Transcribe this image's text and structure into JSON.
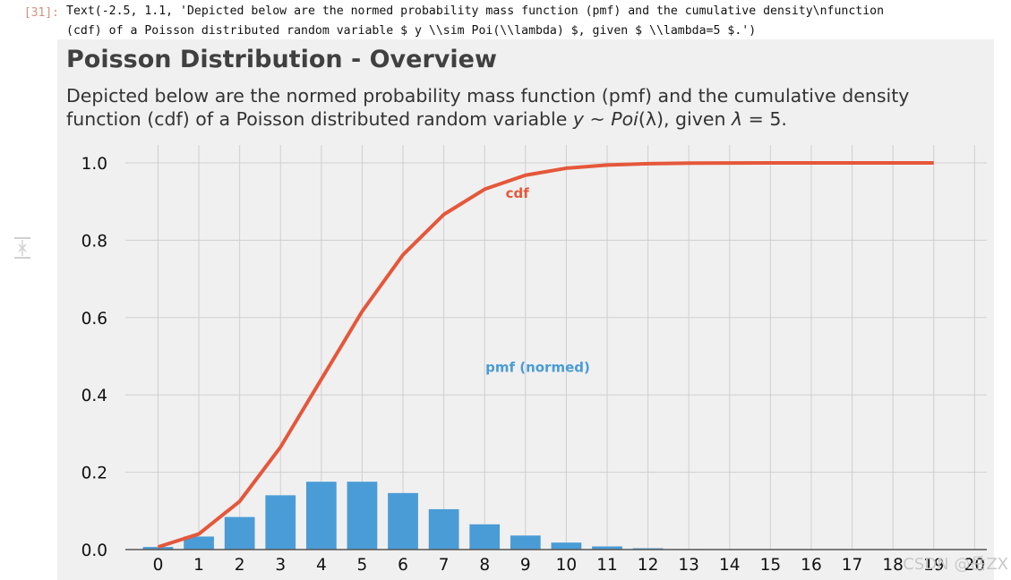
{
  "cell": {
    "prompt": "[31]:",
    "output_line1": "Text(-2.5, 1.1, 'Depicted below are the normed probability mass function (pmf) and the cumulative density\\nfunction",
    "output_line2": "(cdf) of a Poisson distributed random variable $ y \\\\sim Poi(\\\\lambda) $, given $ \\\\lambda=5 $.')"
  },
  "watermark": "CSDN @岳ZX",
  "colors": {
    "cdf": "#e5573a",
    "pmf": "#4a9cd6",
    "figure_background": "#f0f0f0",
    "grid": "#cfcfcf"
  },
  "icons": {
    "collapse": "collapse-output-icon"
  },
  "chart_data": {
    "type": "bar",
    "title": "Poisson Distribution - Overview",
    "subtitle_line1": "Depicted below are the normed probability mass function (pmf) and the cumulative density",
    "subtitle_line2_prefix": "function (cdf) of a Poisson distributed random variable ",
    "subtitle_math_y": "y",
    "subtitle_math_sim": " ~ ",
    "subtitle_math_poi": "Poi",
    "subtitle_math_lambda_paren": "(λ)",
    "subtitle_mid": ", given ",
    "subtitle_math_lambda": "λ",
    "subtitle_math_eq": " = 5.",
    "xlim": [
      -0.8,
      20.3
    ],
    "ylim": [
      0,
      1.0
    ],
    "grid": true,
    "x_ticks": [
      0,
      1,
      2,
      3,
      4,
      5,
      6,
      7,
      8,
      9,
      10,
      11,
      12,
      13,
      14,
      15,
      16,
      17,
      18,
      19,
      20
    ],
    "y_ticks": [
      "0.0",
      "0.2",
      "0.4",
      "0.6",
      "0.8",
      "1.0"
    ],
    "series": [
      {
        "name": "pmf (normed)",
        "type": "bar",
        "x": [
          0,
          1,
          2,
          3,
          4,
          5,
          6,
          7,
          8,
          9,
          10,
          11,
          12,
          13,
          14,
          15,
          16,
          17,
          18,
          19
        ],
        "values": [
          0.0067,
          0.0337,
          0.0842,
          0.1404,
          0.1755,
          0.1755,
          0.1462,
          0.1044,
          0.0653,
          0.0363,
          0.0181,
          0.0082,
          0.0034,
          0.0013,
          0.0005,
          0.0002,
          0.0,
          0.0,
          0.0,
          0.0
        ]
      },
      {
        "name": "cdf",
        "type": "line",
        "x": [
          0,
          1,
          2,
          3,
          4,
          5,
          6,
          7,
          8,
          9,
          10,
          11,
          12,
          13,
          14,
          15,
          16,
          17,
          18,
          19
        ],
        "values": [
          0.0067,
          0.0404,
          0.1247,
          0.265,
          0.4405,
          0.616,
          0.7622,
          0.8666,
          0.9319,
          0.9682,
          0.9863,
          0.9945,
          0.998,
          0.9993,
          0.9998,
          0.9999,
          1.0,
          1.0,
          1.0,
          1.0
        ]
      }
    ],
    "annotations": [
      {
        "text": "cdf",
        "x": 8.8,
        "y": 0.91,
        "series": "cdf"
      },
      {
        "text": "pmf (normed)",
        "x": 9.3,
        "y": 0.46,
        "series": "pmf (normed)"
      }
    ]
  }
}
